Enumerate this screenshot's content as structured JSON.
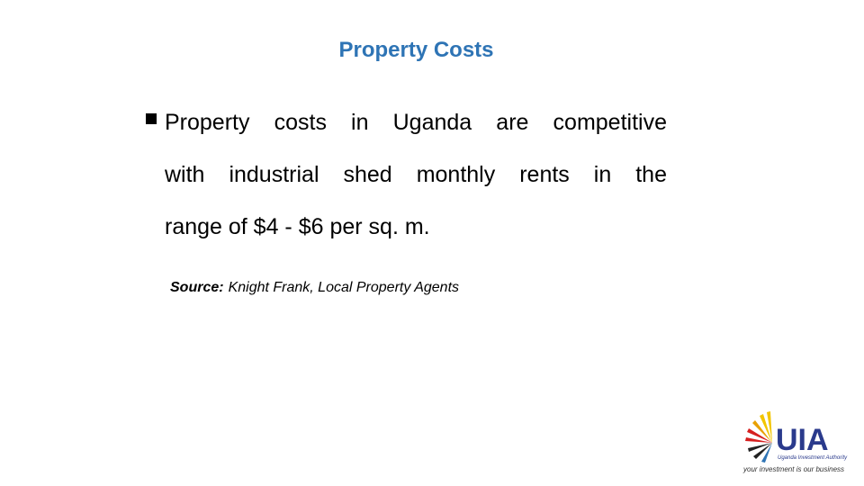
{
  "header": {
    "title": "Property Costs"
  },
  "body": {
    "lines": [
      "Property costs in Uganda are competitive",
      "with industrial shed monthly rents in the",
      "range of $4 - $6 per sq. m."
    ]
  },
  "source": {
    "label": "Source:",
    "text": "Knight Frank, Local Property Agents"
  },
  "logo": {
    "name": "UIA",
    "full_name": "Uganda Investment Authority",
    "tagline": "your investment is our business"
  }
}
